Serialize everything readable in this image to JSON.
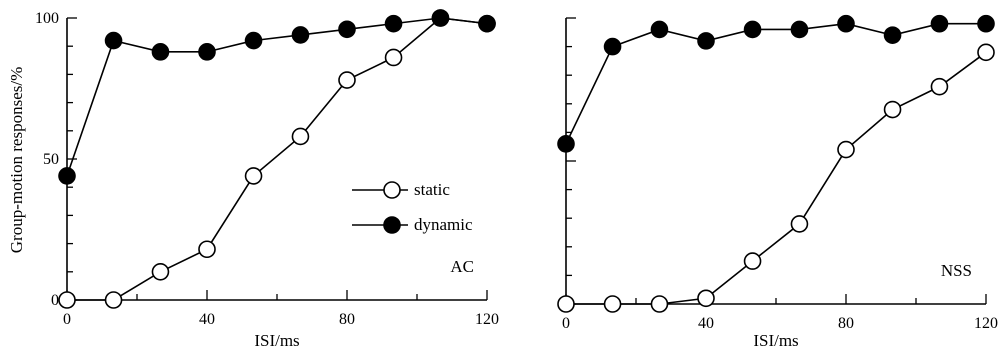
{
  "ylabel": "Group-motion responses/%",
  "chart_data": [
    {
      "type": "line",
      "panel_label": "AC",
      "xlabel": "ISI/ms",
      "xlim": [
        0,
        120
      ],
      "ylim": [
        0,
        100
      ],
      "xticks": [
        0,
        40,
        80,
        120
      ],
      "yticks": [
        0,
        50,
        100
      ],
      "legend": {
        "placement": "center-right",
        "entries": [
          "static",
          "dynamic"
        ]
      },
      "series": [
        {
          "name": "static",
          "marker": "open-circle",
          "x": [
            0,
            13.3,
            26.7,
            40,
            53.3,
            66.7,
            80,
            93.3,
            106.7,
            120
          ],
          "values": [
            0,
            0,
            10,
            18,
            44,
            58,
            78,
            86,
            100,
            98
          ]
        },
        {
          "name": "dynamic",
          "marker": "filled-circle",
          "x": [
            0,
            13.3,
            26.7,
            40,
            53.3,
            66.7,
            80,
            93.3,
            106.7,
            120
          ],
          "values": [
            44,
            92,
            88,
            88,
            92,
            94,
            96,
            98,
            100,
            98
          ]
        }
      ]
    },
    {
      "type": "line",
      "panel_label": "NSS",
      "xlabel": "ISI/ms",
      "xlim": [
        0,
        120
      ],
      "ylim": [
        0,
        100
      ],
      "xticks": [
        0,
        40,
        80,
        120
      ],
      "series": [
        {
          "name": "static",
          "marker": "open-circle",
          "x": [
            0,
            13.3,
            26.7,
            40,
            53.3,
            66.7,
            80,
            93.3,
            106.7,
            120
          ],
          "values": [
            0,
            0,
            0,
            2,
            15,
            28,
            54,
            68,
            76,
            88
          ]
        },
        {
          "name": "dynamic",
          "marker": "filled-circle",
          "x": [
            0,
            13.3,
            26.7,
            40,
            53.3,
            66.7,
            80,
            93.3,
            106.7,
            120
          ],
          "values": [
            56,
            90,
            96,
            92,
            96,
            96,
            98,
            94,
            98,
            98
          ]
        }
      ]
    }
  ]
}
